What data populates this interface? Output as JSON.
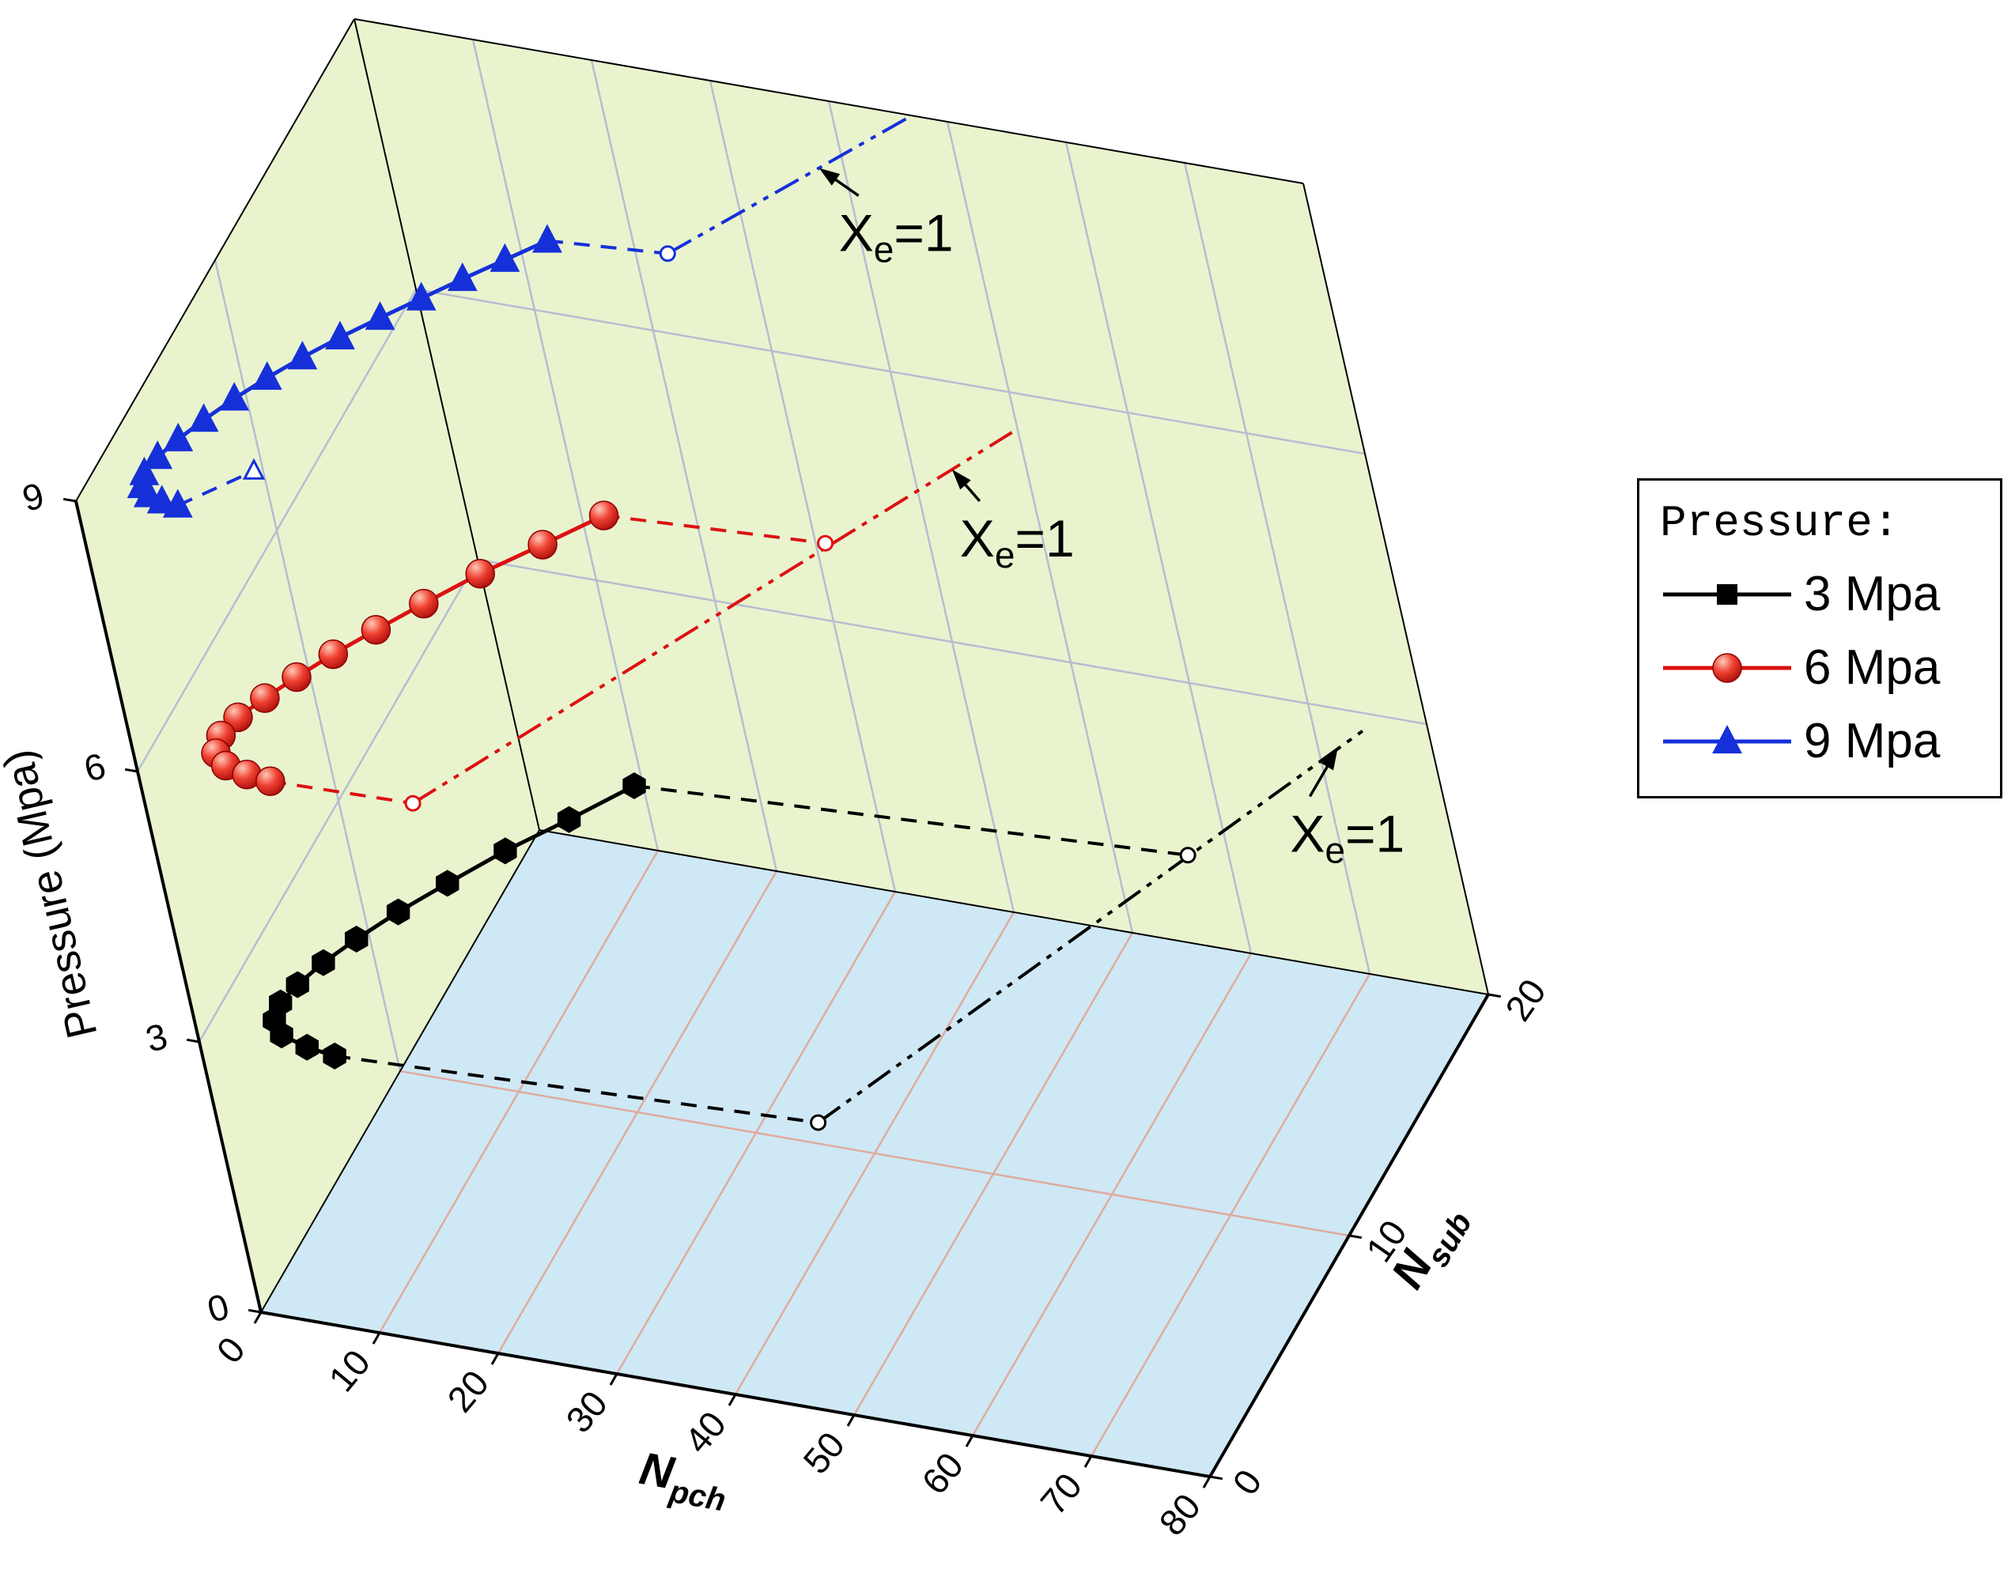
{
  "chart_data": {
    "type": "line3d",
    "description": "3D stability map: stability boundaries in the Npch-Nsub plane at three system pressures, with Xe=1 loci",
    "axes": {
      "x": {
        "title_main": "N",
        "title_sub": "pch",
        "range": [
          0,
          80
        ],
        "ticks": [
          {
            "v": 0,
            "label": "0"
          },
          {
            "v": 10,
            "label": "10"
          },
          {
            "v": 20,
            "label": "20"
          },
          {
            "v": 30,
            "label": "30"
          },
          {
            "v": 40,
            "label": "40"
          },
          {
            "v": 50,
            "label": "50"
          },
          {
            "v": 60,
            "label": "60"
          },
          {
            "v": 70,
            "label": "70"
          },
          {
            "v": 80,
            "label": "80"
          }
        ]
      },
      "y": {
        "title_main": "N",
        "title_sub": "sub",
        "range": [
          0,
          20
        ],
        "ticks": [
          {
            "v": 0,
            "label": "0"
          },
          {
            "v": 10,
            "label": "10"
          },
          {
            "v": 20,
            "label": "20"
          }
        ]
      },
      "z": {
        "title": "Pressure (Mpa)",
        "range": [
          0,
          9
        ],
        "ticks": [
          {
            "v": 0,
            "label": "0"
          },
          {
            "v": 3,
            "label": "3"
          },
          {
            "v": 6,
            "label": "6"
          },
          {
            "v": 9,
            "label": "9"
          }
        ]
      }
    },
    "colors": {
      "floor": "#cfe8f5",
      "wall": "#e9f4cf",
      "wall_grid": "#b7bdd0",
      "floor_grid": "#dfab9e",
      "axis": "#000000",
      "annotation": "#000000"
    },
    "series": [
      {
        "name": "3 Mpa",
        "pressure": 3,
        "color": "#000000",
        "marker": "hexagon",
        "legend_marker": "square",
        "boundary": [
          [
            22,
            12.5
          ],
          [
            18.5,
            10.8
          ],
          [
            15,
            9.2
          ],
          [
            12,
            7.6
          ],
          [
            9.5,
            6.2
          ],
          [
            7.5,
            4.9
          ],
          [
            6,
            3.8
          ],
          [
            5,
            2.8
          ],
          [
            4.5,
            2
          ],
          [
            4.8,
            1.3
          ],
          [
            6,
            0.8
          ],
          [
            8.5,
            0.5
          ],
          [
            11,
            0.35
          ]
        ],
        "dash_upper": [
          [
            22,
            12.5
          ],
          [
            67.5,
            13.5
          ]
        ],
        "dash_lower": [
          [
            11,
            0.35
          ],
          [
            51,
            1
          ]
        ],
        "xe1_line": [
          [
            51,
            1
          ],
          [
            75.5,
            19.4
          ]
        ],
        "open_circles": [
          [
            51,
            1
          ],
          [
            67.5,
            13.5
          ]
        ],
        "open_triangles": [],
        "annotation": {
          "main": "X",
          "sub": "e",
          "rest": "=1",
          "tip_t": 0.95,
          "lx": -60,
          "ly": 130
        }
      },
      {
        "name": "6 Mpa",
        "pressure": 6,
        "color": "#dd1111",
        "marker": "sphere",
        "legend_marker": "sphere",
        "boundary": [
          [
            24.4,
            12.7
          ],
          [
            21,
            11.2
          ],
          [
            17.5,
            9.7
          ],
          [
            14.5,
            8.2
          ],
          [
            12,
            6.9
          ],
          [
            9.8,
            5.7
          ],
          [
            8,
            4.6
          ],
          [
            6.5,
            3.6
          ],
          [
            5.3,
            2.7
          ],
          [
            4.8,
            1.9
          ],
          [
            5.2,
            1.2
          ],
          [
            6.5,
            0.8
          ],
          [
            8.5,
            0.6
          ],
          [
            10.6,
            0.5
          ]
        ],
        "dash_upper": [
          [
            24.4,
            12.7
          ],
          [
            42.6,
            13.1
          ]
        ],
        "dash_lower": [
          [
            10.6,
            0.5
          ],
          [
            22.5,
            0.6
          ]
        ],
        "xe1_line": [
          [
            22.5,
            0.6
          ],
          [
            52,
            18.5
          ]
        ],
        "open_circles": [
          [
            22.5,
            0.6
          ],
          [
            42.6,
            13.1
          ]
        ],
        "open_triangles": [],
        "annotation": {
          "main": "X",
          "sub": "e",
          "rest": "=1",
          "tip_t": 0.9,
          "lx": 10,
          "ly": 110
        }
      },
      {
        "name": "9 Mpa",
        "pressure": 9,
        "color": "#1630d9",
        "marker": "triangle",
        "legend_marker": "triangle",
        "boundary": [
          [
            24.6,
            12.9
          ],
          [
            22.2,
            11.9
          ],
          [
            19.8,
            10.9
          ],
          [
            17.5,
            9.9
          ],
          [
            15.2,
            8.9
          ],
          [
            13,
            7.9
          ],
          [
            11,
            6.9
          ],
          [
            9.2,
            5.9
          ],
          [
            7.6,
            4.9
          ],
          [
            6.2,
            3.9
          ],
          [
            5.1,
            3
          ],
          [
            4.3,
            2.2
          ],
          [
            4,
            1.5
          ],
          [
            4.4,
            1
          ],
          [
            5.3,
            0.7
          ],
          [
            6.6,
            0.55
          ],
          [
            8,
            0.5
          ]
        ],
        "dash_upper": [
          [
            24.6,
            12.9
          ],
          [
            34.4,
            13.2
          ]
        ],
        "dash_lower": [
          [
            8,
            0.5
          ],
          [
            12.3,
            2.3
          ]
        ],
        "xe1_line": [
          [
            34.4,
            13.2
          ],
          [
            47,
            20
          ]
        ],
        "open_circles": [
          [
            34.4,
            13.2
          ]
        ],
        "open_triangles": [
          [
            12.3,
            2.3
          ]
        ],
        "annotation": {
          "main": "X",
          "sub": "e",
          "rest": "=1",
          "tip_t": 0.62,
          "lx": 25,
          "ly": 105
        }
      }
    ],
    "legend": {
      "title": "Pressure:",
      "entries": [
        {
          "label": "3 Mpa"
        },
        {
          "label": "6 Mpa"
        },
        {
          "label": "9 Mpa"
        }
      ]
    }
  }
}
